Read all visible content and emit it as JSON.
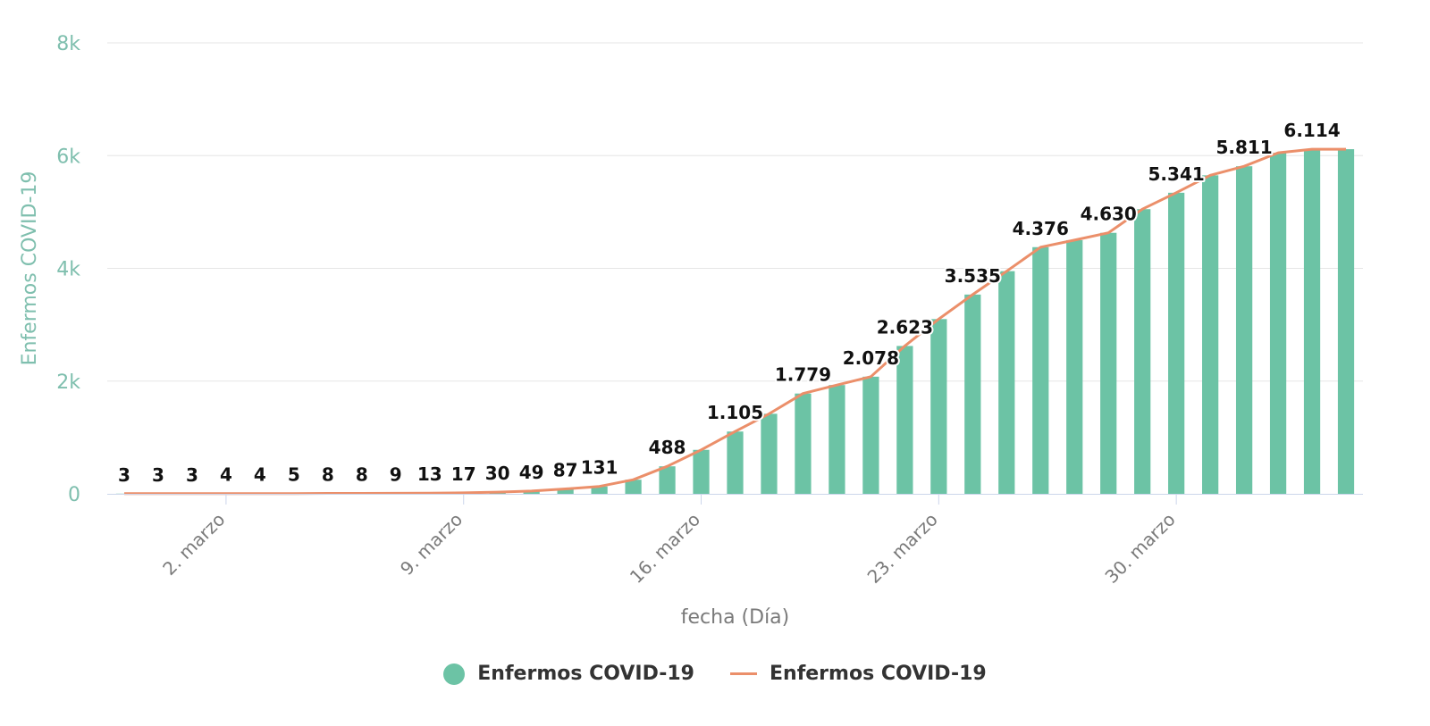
{
  "colors": {
    "bar": "#6cc3a5",
    "line": "#eb8f6a",
    "grid": "#e6e6e6",
    "axis_title_y": "#7fbfae"
  },
  "chart_data": {
    "type": "bar",
    "x": [
      "2020-02-28",
      "2020-02-29",
      "2020-03-01",
      "2020-03-02",
      "2020-03-03",
      "2020-03-04",
      "2020-03-05",
      "2020-03-06",
      "2020-03-07",
      "2020-03-08",
      "2020-03-09",
      "2020-03-10",
      "2020-03-11",
      "2020-03-12",
      "2020-03-13",
      "2020-03-14",
      "2020-03-15",
      "2020-03-16",
      "2020-03-17",
      "2020-03-18",
      "2020-03-19",
      "2020-03-20",
      "2020-03-21",
      "2020-03-22",
      "2020-03-23",
      "2020-03-24",
      "2020-03-25",
      "2020-03-26",
      "2020-03-27",
      "2020-03-28",
      "2020-03-29",
      "2020-03-30",
      "2020-03-31",
      "2020-04-01",
      "2020-04-02",
      "2020-04-03",
      "2020-04-04"
    ],
    "series": [
      {
        "name": "Enfermos COVID-19",
        "type": "bar",
        "values": [
          3,
          3,
          3,
          4,
          4,
          5,
          8,
          8,
          9,
          13,
          17,
          30,
          49,
          87,
          131,
          250,
          488,
          780,
          1105,
          1420,
          1779,
          1930,
          2078,
          2623,
          3100,
          3535,
          3950,
          4376,
          4500,
          4630,
          5050,
          5341,
          5650,
          5811,
          6050,
          6114,
          6114
        ]
      },
      {
        "name": "Enfermos COVID-19",
        "type": "line",
        "values": [
          3,
          3,
          3,
          4,
          4,
          5,
          8,
          8,
          9,
          13,
          17,
          30,
          49,
          87,
          131,
          250,
          488,
          780,
          1105,
          1420,
          1779,
          1930,
          2078,
          2623,
          3100,
          3535,
          3950,
          4376,
          4500,
          4630,
          5050,
          5341,
          5650,
          5811,
          6050,
          6114,
          6114
        ]
      }
    ],
    "data_labels": [
      {
        "i": 0,
        "text": "3"
      },
      {
        "i": 1,
        "text": "3"
      },
      {
        "i": 2,
        "text": "3"
      },
      {
        "i": 3,
        "text": "4"
      },
      {
        "i": 4,
        "text": "4"
      },
      {
        "i": 5,
        "text": "5"
      },
      {
        "i": 6,
        "text": "8"
      },
      {
        "i": 7,
        "text": "8"
      },
      {
        "i": 8,
        "text": "9"
      },
      {
        "i": 9,
        "text": "13"
      },
      {
        "i": 10,
        "text": "17"
      },
      {
        "i": 11,
        "text": "30"
      },
      {
        "i": 12,
        "text": "49"
      },
      {
        "i": 13,
        "text": "87"
      },
      {
        "i": 14,
        "text": "131"
      },
      {
        "i": 16,
        "text": "488"
      },
      {
        "i": 18,
        "text": "1.105"
      },
      {
        "i": 20,
        "text": "1.779"
      },
      {
        "i": 22,
        "text": "2.078"
      },
      {
        "i": 23,
        "text": "2.623"
      },
      {
        "i": 25,
        "text": "3.535"
      },
      {
        "i": 27,
        "text": "4.376"
      },
      {
        "i": 29,
        "text": "4.630"
      },
      {
        "i": 31,
        "text": "5.341"
      },
      {
        "i": 33,
        "text": "5.811"
      },
      {
        "i": 35,
        "text": "6.114"
      }
    ],
    "xticks": [
      {
        "i": 3,
        "label": "2. marzo"
      },
      {
        "i": 10,
        "label": "9. marzo"
      },
      {
        "i": 17,
        "label": "16. marzo"
      },
      {
        "i": 24,
        "label": "23. marzo"
      },
      {
        "i": 31,
        "label": "30. marzo"
      }
    ],
    "yticks": [
      {
        "v": 0,
        "label": "0"
      },
      {
        "v": 2000,
        "label": "2k"
      },
      {
        "v": 4000,
        "label": "4k"
      },
      {
        "v": 6000,
        "label": "6k"
      },
      {
        "v": 8000,
        "label": "8k"
      }
    ],
    "ylim": [
      0,
      8000
    ],
    "xlabel": "fecha (Día)",
    "ylabel": "Enfermos COVID-19",
    "grid": true,
    "legend_position": "bottom-center"
  },
  "legend": [
    {
      "label": "Enfermos COVID-19",
      "symbol": "dot"
    },
    {
      "label": "Enfermos COVID-19",
      "symbol": "line"
    }
  ]
}
